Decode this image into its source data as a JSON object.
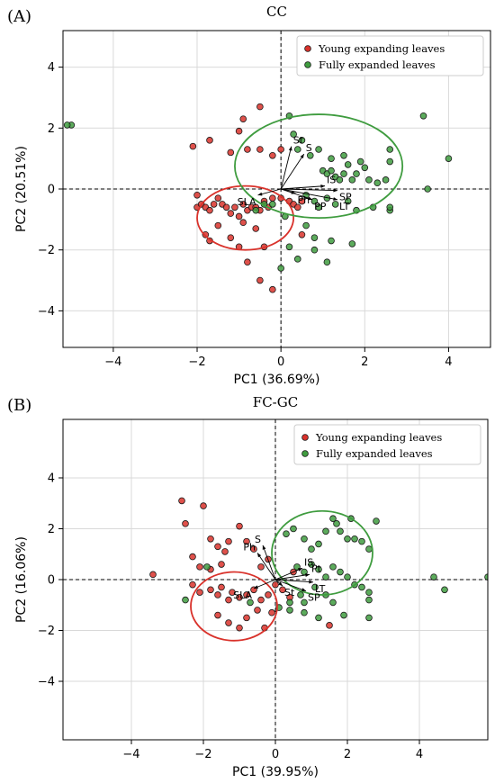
{
  "chart_data": [
    {
      "type": "scatter",
      "panel_label": "(A)",
      "title": "CC",
      "xlabel": "PC1 (36.69%)",
      "ylabel": "PC2 (20.51%)",
      "xlim": [
        -5.2,
        5.0
      ],
      "ylim": [
        -5.2,
        5.2
      ],
      "x_ticks": [
        -4,
        -2,
        0,
        2,
        4
      ],
      "y_ticks": [
        -4,
        -2,
        0,
        2,
        4
      ],
      "grid": true,
      "legend_position": "top-right",
      "series": [
        {
          "name": "Young expanding leaves",
          "color": "#d9322b",
          "points": [
            [
              -2.1,
              1.4
            ],
            [
              -1.7,
              1.6
            ],
            [
              -1.2,
              1.2
            ],
            [
              -1.0,
              1.9
            ],
            [
              -0.9,
              2.3
            ],
            [
              -0.5,
              1.3
            ],
            [
              -0.2,
              1.1
            ],
            [
              -0.5,
              2.7
            ],
            [
              -0.8,
              1.3
            ],
            [
              -2.0,
              -0.6
            ],
            [
              -1.9,
              -0.5
            ],
            [
              -1.8,
              -0.6
            ],
            [
              -1.7,
              -0.7
            ],
            [
              -1.6,
              -0.5
            ],
            [
              -1.5,
              -0.3
            ],
            [
              -1.4,
              -0.5
            ],
            [
              -1.3,
              -0.6
            ],
            [
              -1.2,
              -0.8
            ],
            [
              -1.1,
              -0.6
            ],
            [
              -1.0,
              -0.9
            ],
            [
              -0.9,
              -0.5
            ],
            [
              -0.8,
              -0.7
            ],
            [
              -0.7,
              -0.6
            ],
            [
              -0.6,
              -0.6
            ],
            [
              -0.5,
              -0.7
            ],
            [
              -0.4,
              -0.4
            ],
            [
              -0.3,
              -0.6
            ],
            [
              -0.2,
              -0.3
            ],
            [
              0.0,
              -0.3
            ],
            [
              0.2,
              -0.4
            ],
            [
              0.3,
              -0.5
            ],
            [
              0.4,
              -0.6
            ],
            [
              0.5,
              -0.4
            ],
            [
              -1.8,
              -1.5
            ],
            [
              -1.7,
              -1.7
            ],
            [
              -1.5,
              -1.2
            ],
            [
              -1.2,
              -1.6
            ],
            [
              -1.0,
              -1.9
            ],
            [
              -0.9,
              -1.1
            ],
            [
              -0.6,
              -1.3
            ],
            [
              -0.4,
              -1.9
            ],
            [
              -2.0,
              -0.2
            ],
            [
              -0.8,
              -2.4
            ],
            [
              -0.5,
              -3.0
            ],
            [
              -0.2,
              -3.3
            ],
            [
              0.5,
              -1.5
            ],
            [
              0.0,
              1.3
            ]
          ]
        },
        {
          "name": "Fully expanded leaves",
          "color": "#3f9c3f",
          "points": [
            [
              -5.0,
              2.1
            ],
            [
              -5.1,
              2.1
            ],
            [
              0.2,
              2.4
            ],
            [
              0.3,
              1.8
            ],
            [
              0.5,
              1.6
            ],
            [
              0.4,
              1.3
            ],
            [
              0.7,
              1.1
            ],
            [
              0.9,
              1.3
            ],
            [
              1.0,
              0.6
            ],
            [
              1.1,
              0.5
            ],
            [
              1.2,
              0.6
            ],
            [
              1.3,
              0.4
            ],
            [
              1.4,
              0.3
            ],
            [
              1.5,
              0.5
            ],
            [
              1.6,
              0.8
            ],
            [
              1.7,
              0.3
            ],
            [
              1.8,
              0.5
            ],
            [
              1.2,
              1.0
            ],
            [
              1.5,
              1.1
            ],
            [
              1.9,
              0.9
            ],
            [
              2.1,
              0.3
            ],
            [
              2.6,
              0.9
            ],
            [
              2.5,
              0.3
            ],
            [
              2.6,
              1.3
            ],
            [
              3.4,
              2.4
            ],
            [
              3.5,
              0.0
            ],
            [
              4.0,
              1.0
            ],
            [
              2.0,
              0.7
            ],
            [
              2.3,
              0.2
            ],
            [
              0.6,
              -0.2
            ],
            [
              0.8,
              -0.4
            ],
            [
              0.9,
              -0.6
            ],
            [
              1.1,
              -0.3
            ],
            [
              1.3,
              -0.5
            ],
            [
              1.6,
              -0.4
            ],
            [
              1.8,
              -0.7
            ],
            [
              2.2,
              -0.6
            ],
            [
              2.6,
              -0.7
            ],
            [
              2.6,
              -0.6
            ],
            [
              -0.2,
              -0.5
            ],
            [
              -0.4,
              -0.5
            ],
            [
              -0.6,
              -0.7
            ],
            [
              0.2,
              -1.9
            ],
            [
              0.4,
              -2.3
            ],
            [
              0.8,
              -2.0
            ],
            [
              1.1,
              -2.4
            ],
            [
              1.2,
              -1.7
            ],
            [
              1.7,
              -1.8
            ],
            [
              0.0,
              -2.6
            ],
            [
              0.1,
              -0.9
            ],
            [
              0.6,
              -1.2
            ],
            [
              0.8,
              -1.6
            ]
          ]
        }
      ],
      "ellipses": [
        {
          "series": "Young expanding leaves",
          "cx": -0.85,
          "cy": -0.95,
          "rx": 1.15,
          "ry": 1.05
        },
        {
          "series": "Fully expanded leaves",
          "cx": 0.9,
          "cy": 0.75,
          "rx": 2.0,
          "ry": 1.7
        }
      ],
      "loadings": [
        {
          "label": "St",
          "x": 0.25,
          "y": 1.4
        },
        {
          "label": "S",
          "x": 0.55,
          "y": 1.15
        },
        {
          "label": "SLA",
          "x": -0.55,
          "y": -0.2
        },
        {
          "label": "Ph",
          "x": 0.35,
          "y": -0.15
        },
        {
          "label": "PP",
          "x": 0.75,
          "y": -0.35
        },
        {
          "label": "IS",
          "x": 1.05,
          "y": 0.1
        },
        {
          "label": "SP",
          "x": 1.35,
          "y": -0.05
        },
        {
          "label": "LT",
          "x": 1.35,
          "y": -0.35
        }
      ]
    },
    {
      "type": "scatter",
      "panel_label": "(B)",
      "title": "FC-GC",
      "xlabel": "PC1 (39.95%)",
      "ylabel": "PC2 (16.06%)",
      "xlim": [
        -5.9,
        5.9
      ],
      "ylim": [
        -6.3,
        6.3
      ],
      "x_ticks": [
        -4,
        -2,
        0,
        2,
        4
      ],
      "y_ticks": [
        -4,
        -2,
        0,
        2,
        4
      ],
      "grid": true,
      "legend_position": "top-right",
      "series": [
        {
          "name": "Young expanding leaves",
          "color": "#d9322b",
          "points": [
            [
              -2.6,
              3.1
            ],
            [
              -2.5,
              2.2
            ],
            [
              -2.0,
              2.9
            ],
            [
              -1.8,
              1.6
            ],
            [
              -1.6,
              1.3
            ],
            [
              -1.4,
              1.1
            ],
            [
              -1.3,
              1.5
            ],
            [
              -1.0,
              2.1
            ],
            [
              -0.8,
              1.5
            ],
            [
              -0.6,
              1.2
            ],
            [
              -0.4,
              0.5
            ],
            [
              -0.2,
              0.8
            ],
            [
              -2.3,
              0.9
            ],
            [
              -2.1,
              0.5
            ],
            [
              -1.8,
              0.4
            ],
            [
              -1.5,
              0.6
            ],
            [
              -3.4,
              0.2
            ],
            [
              -2.1,
              -0.5
            ],
            [
              -1.8,
              -0.4
            ],
            [
              -1.6,
              -0.6
            ],
            [
              -1.5,
              -0.3
            ],
            [
              -1.3,
              -0.8
            ],
            [
              -1.2,
              -0.5
            ],
            [
              -1.0,
              -0.7
            ],
            [
              -0.8,
              -0.6
            ],
            [
              -0.6,
              -0.4
            ],
            [
              -0.4,
              -0.8
            ],
            [
              -0.2,
              -0.6
            ],
            [
              0.2,
              -0.4
            ],
            [
              0.4,
              -0.7
            ],
            [
              -1.6,
              -1.4
            ],
            [
              -1.3,
              -1.7
            ],
            [
              -1.0,
              -1.9
            ],
            [
              -0.8,
              -1.5
            ],
            [
              -0.5,
              -1.2
            ],
            [
              -0.3,
              -1.9
            ],
            [
              0.0,
              -0.2
            ],
            [
              0.5,
              0.3
            ],
            [
              -2.3,
              -0.2
            ],
            [
              -0.1,
              -1.3
            ],
            [
              1.5,
              -1.8
            ]
          ]
        },
        {
          "name": "Fully expanded leaves",
          "color": "#3f9c3f",
          "points": [
            [
              -2.5,
              -0.8
            ],
            [
              -0.7,
              -0.9
            ],
            [
              -1.9,
              0.5
            ],
            [
              0.3,
              1.8
            ],
            [
              0.5,
              2.0
            ],
            [
              0.8,
              1.6
            ],
            [
              1.0,
              1.2
            ],
            [
              1.2,
              1.4
            ],
            [
              1.4,
              1.9
            ],
            [
              1.6,
              2.4
            ],
            [
              1.8,
              1.9
            ],
            [
              2.0,
              1.6
            ],
            [
              2.1,
              2.4
            ],
            [
              2.2,
              1.6
            ],
            [
              2.4,
              1.5
            ],
            [
              2.8,
              2.3
            ],
            [
              2.6,
              1.2
            ],
            [
              1.7,
              2.2
            ],
            [
              0.6,
              0.5
            ],
            [
              0.8,
              0.3
            ],
            [
              1.0,
              0.6
            ],
            [
              1.2,
              0.4
            ],
            [
              1.4,
              0.1
            ],
            [
              1.6,
              0.5
            ],
            [
              1.8,
              0.3
            ],
            [
              2.0,
              0.1
            ],
            [
              2.2,
              -0.2
            ],
            [
              2.4,
              -0.3
            ],
            [
              2.6,
              -0.5
            ],
            [
              2.6,
              -0.8
            ],
            [
              1.1,
              -0.3
            ],
            [
              1.4,
              -0.6
            ],
            [
              1.6,
              -0.9
            ],
            [
              0.1,
              -1.1
            ],
            [
              0.4,
              -1.2
            ],
            [
              0.7,
              -0.6
            ],
            [
              0.8,
              -1.3
            ],
            [
              1.2,
              -1.5
            ],
            [
              1.9,
              -1.4
            ],
            [
              2.6,
              -1.5
            ],
            [
              0.4,
              -0.9
            ],
            [
              0.8,
              -0.9
            ],
            [
              4.4,
              0.1
            ],
            [
              4.7,
              -0.4
            ],
            [
              5.9,
              0.1
            ]
          ]
        }
      ],
      "ellipses": [
        {
          "series": "Young expanding leaves",
          "cx": -1.15,
          "cy": -1.05,
          "rx": 1.2,
          "ry": 1.35
        },
        {
          "series": "Fully expanded leaves",
          "cx": 1.3,
          "cy": 1.05,
          "rx": 1.4,
          "ry": 1.65
        }
      ],
      "loadings": [
        {
          "label": "S",
          "x": -0.35,
          "y": 1.35
        },
        {
          "label": "Ph",
          "x": -0.5,
          "y": 1.05
        },
        {
          "label": "SLA",
          "x": -0.6,
          "y": -0.35
        },
        {
          "label": "St",
          "x": 0.2,
          "y": -0.25
        },
        {
          "label": "IS",
          "x": 0.75,
          "y": 0.45
        },
        {
          "label": "Pt",
          "x": 0.95,
          "y": 0.2
        },
        {
          "label": "LT",
          "x": 1.05,
          "y": -0.1
        },
        {
          "label": "SP",
          "x": 0.85,
          "y": -0.45
        }
      ]
    }
  ]
}
